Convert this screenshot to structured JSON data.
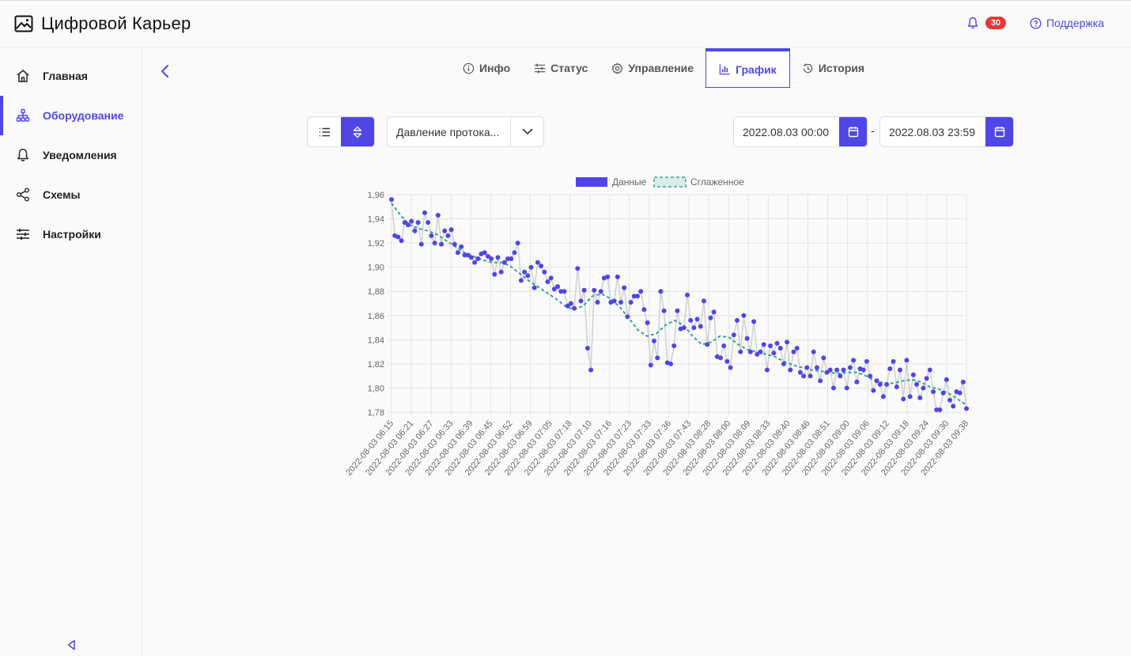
{
  "app": {
    "title": "Цифровой Карьер"
  },
  "header": {
    "notifications_count": "30",
    "support_label": "Поддержка"
  },
  "sidebar": {
    "items": [
      {
        "label": "Главная",
        "icon": "home-icon",
        "active": false
      },
      {
        "label": "Оборудование",
        "icon": "hierarchy-icon",
        "active": true
      },
      {
        "label": "Уведомления",
        "icon": "bell-icon",
        "active": false
      },
      {
        "label": "Схемы",
        "icon": "share-icon",
        "active": false
      },
      {
        "label": "Настройки",
        "icon": "sliders-icon",
        "active": false
      }
    ]
  },
  "tabs": [
    {
      "label": "Инфо",
      "icon": "info-icon",
      "active": false
    },
    {
      "label": "Статус",
      "icon": "sliders-icon",
      "active": false
    },
    {
      "label": "Управление",
      "icon": "gear-icon",
      "active": false
    },
    {
      "label": "График",
      "icon": "bar-chart-icon",
      "active": true
    },
    {
      "label": "История",
      "icon": "history-icon",
      "active": false
    }
  ],
  "toolbar": {
    "parameter_select": "Давление протока...",
    "date_from": "2022.08.03 00:00",
    "date_to": "2022.08.03 23:59",
    "date_separator": "-"
  },
  "colors": {
    "accent": "#4f46e5",
    "smooth": "#3aa198",
    "badge": "#e53935"
  },
  "chart_data": {
    "type": "line",
    "legend": [
      "Данные",
      "Сглаженное"
    ],
    "legend_position": "top",
    "y_ticks": [
      "1,96",
      "1,94",
      "1,92",
      "1,90",
      "1,88",
      "1,86",
      "1,84",
      "1,82",
      "1,80",
      "1,78"
    ],
    "ylim": [
      1.78,
      1.96
    ],
    "x_ticks": [
      "2022-08-03 06:15",
      "2022-08-03 06:21",
      "2022-08-03 06:27",
      "2022-08-03 06:33",
      "2022-08-03 06:39",
      "2022-08-03 06:45",
      "2022-08-03 06:52",
      "2022-08-03 06:59",
      "2022-08-03 07:05",
      "2022-08-03 07:18",
      "2022-08-03 07:10",
      "2022-08-03 07:16",
      "2022-08-03 07:23",
      "2022-08-03 07:33",
      "2022-08-03 07:36",
      "2022-08-03 07:43",
      "2022-08-03 08:28",
      "2022-08-03 08:00",
      "2022-08-03 08:09",
      "2022-08-03 08:33",
      "2022-08-03 08:40",
      "2022-08-03 08:46",
      "2022-08-03 08:51",
      "2022-08-03 09:00",
      "2022-08-03 09:06",
      "2022-08-03 09:12",
      "2022-08-03 09:18",
      "2022-08-03 09:24",
      "2022-08-03 09:30",
      "2022-08-03 09:38"
    ],
    "series": [
      {
        "name": "Данные",
        "values": [
          1.956,
          1.926,
          1.925,
          1.922,
          1.937,
          1.935,
          1.938,
          1.93,
          1.937,
          1.919,
          1.945,
          1.937,
          1.926,
          1.92,
          1.943,
          1.919,
          1.93,
          1.926,
          1.931,
          1.919,
          1.912,
          1.917,
          1.91,
          1.91,
          1.908,
          1.904,
          1.907,
          1.911,
          1.912,
          1.909,
          1.907,
          1.894,
          1.908,
          1.896,
          1.904,
          1.907,
          1.907,
          1.912,
          1.92,
          1.889,
          1.896,
          1.893,
          1.9,
          1.883,
          1.904,
          1.901,
          1.896,
          1.888,
          1.891,
          1.882,
          1.884,
          1.88,
          1.88,
          1.868,
          1.87,
          1.866,
          1.899,
          1.872,
          1.881,
          1.833,
          1.815,
          1.881,
          1.871,
          1.88,
          1.891,
          1.892,
          1.871,
          1.872,
          1.892,
          1.871,
          1.883,
          1.859,
          1.871,
          1.876,
          1.876,
          1.88,
          1.865,
          1.854,
          1.819,
          1.839,
          1.825,
          1.88,
          1.864,
          1.821,
          1.82,
          1.835,
          1.864,
          1.849,
          1.85,
          1.877,
          1.856,
          1.85,
          1.857,
          1.851,
          1.872,
          1.836,
          1.858,
          1.863,
          1.826,
          1.825,
          1.835,
          1.822,
          1.817,
          1.844,
          1.856,
          1.83,
          1.86,
          1.841,
          1.83,
          1.855,
          1.828,
          1.83,
          1.836,
          1.815,
          1.835,
          1.829,
          1.837,
          1.833,
          1.82,
          1.838,
          1.815,
          1.83,
          1.833,
          1.813,
          1.81,
          1.817,
          1.81,
          1.83,
          1.817,
          1.806,
          1.825,
          1.813,
          1.815,
          1.8,
          1.815,
          1.81,
          1.815,
          1.8,
          1.817,
          1.823,
          1.805,
          1.816,
          1.815,
          1.822,
          1.81,
          1.798,
          1.806,
          1.803,
          1.793,
          1.803,
          1.816,
          1.822,
          1.801,
          1.815,
          1.791,
          1.823,
          1.793,
          1.811,
          1.803,
          1.792,
          1.8,
          1.808,
          1.815,
          1.797,
          1.782,
          1.782,
          1.796,
          1.807,
          1.79,
          1.785,
          1.797,
          1.796,
          1.805,
          1.783
        ]
      },
      {
        "name": "Сглаженное",
        "values": [
          1.953,
          1.943,
          1.935,
          1.932,
          1.93,
          1.927,
          1.922,
          1.917,
          1.912,
          1.909,
          1.906,
          1.904,
          1.904,
          1.901,
          1.895,
          1.889,
          1.884,
          1.879,
          1.874,
          1.868,
          1.865,
          1.868,
          1.876,
          1.878,
          1.874,
          1.867,
          1.858,
          1.848,
          1.843,
          1.845,
          1.852,
          1.856,
          1.852,
          1.843,
          1.836,
          1.838,
          1.843,
          1.842,
          1.836,
          1.832,
          1.83,
          1.828,
          1.826,
          1.822,
          1.819,
          1.817,
          1.815,
          1.814,
          1.813,
          1.812,
          1.813,
          1.813,
          1.81,
          1.806,
          1.804,
          1.804,
          1.806,
          1.807,
          1.805,
          1.801,
          1.799,
          1.796,
          1.791,
          1.786
        ]
      }
    ]
  }
}
